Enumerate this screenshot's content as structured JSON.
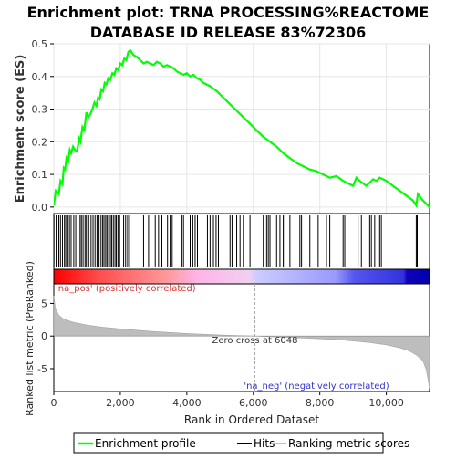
{
  "chart_data": {
    "type": "line",
    "title_line1": "Enrichment plot: TRNA PROCESSING%REACTOME",
    "title_line2": "DATABASE ID RELEASE 83%72306",
    "es_panel": {
      "ylabel": "Enrichment score (ES)",
      "ylim": [
        -0.02,
        0.5
      ],
      "yticks": [
        "0.0",
        "0.1",
        "0.2",
        "0.3",
        "0.4",
        "0.5"
      ],
      "grid": true,
      "series": [
        {
          "name": "Enrichment profile",
          "color": "#00ff00",
          "x": [
            0,
            60,
            150,
            200,
            260,
            300,
            340,
            380,
            430,
            480,
            520,
            580,
            640,
            700,
            760,
            800,
            860,
            920,
            980,
            1040,
            1100,
            1160,
            1220,
            1280,
            1330,
            1380,
            1430,
            1480,
            1530,
            1580,
            1640,
            1700,
            1760,
            1820,
            1880,
            1940,
            2000,
            2060,
            2120,
            2180,
            2240,
            2300,
            2400,
            2500,
            2600,
            2700,
            2800,
            2900,
            3000,
            3100,
            3200,
            3300,
            3400,
            3500,
            3600,
            3700,
            3800,
            3900,
            4000,
            4100,
            4200,
            4300,
            4400,
            4500,
            4700,
            4900,
            5100,
            5300,
            5500,
            5700,
            5900,
            6100,
            6300,
            6500,
            6700,
            6900,
            7100,
            7300,
            7500,
            7700,
            7900,
            8100,
            8300,
            8500,
            8700,
            8800,
            9000,
            9100,
            9200,
            9400,
            9500,
            9600,
            9700,
            9800,
            9900,
            10000,
            10200,
            10400,
            10600,
            10800,
            10900,
            10950,
            11100,
            11300
          ],
          "y": [
            0.005,
            0.05,
            0.04,
            0.08,
            0.07,
            0.12,
            0.115,
            0.15,
            0.14,
            0.175,
            0.165,
            0.185,
            0.175,
            0.17,
            0.21,
            0.2,
            0.245,
            0.235,
            0.29,
            0.275,
            0.285,
            0.3,
            0.32,
            0.31,
            0.335,
            0.33,
            0.36,
            0.355,
            0.38,
            0.375,
            0.395,
            0.39,
            0.41,
            0.405,
            0.425,
            0.42,
            0.44,
            0.435,
            0.455,
            0.45,
            0.475,
            0.48,
            0.465,
            0.46,
            0.45,
            0.44,
            0.445,
            0.44,
            0.435,
            0.445,
            0.44,
            0.43,
            0.435,
            0.43,
            0.425,
            0.415,
            0.41,
            0.405,
            0.41,
            0.4,
            0.405,
            0.395,
            0.39,
            0.38,
            0.37,
            0.355,
            0.335,
            0.315,
            0.295,
            0.275,
            0.255,
            0.235,
            0.215,
            0.2,
            0.185,
            0.165,
            0.15,
            0.135,
            0.125,
            0.115,
            0.11,
            0.1,
            0.09,
            0.095,
            0.08,
            0.075,
            0.065,
            0.09,
            0.08,
            0.065,
            0.075,
            0.085,
            0.08,
            0.09,
            0.085,
            0.08,
            0.065,
            0.05,
            0.035,
            0.02,
            0.005,
            0.04,
            0.02,
            0.0
          ]
        }
      ]
    },
    "ranked_panel": {
      "ylabel": "Ranked list metric (PreRanked)",
      "ylim": [
        -8.5,
        8
      ],
      "yticks": [
        "-5",
        "0",
        "5"
      ],
      "pos_label": "'na_pos' (positively correlated)",
      "neg_label": "'na_neg' (negatively correlated)",
      "zero_cross_label": "Zero cross at 6048",
      "zero_cross": 6048,
      "metric_profile": {
        "x": [
          0,
          50,
          150,
          300,
          600,
          1000,
          1500,
          2000,
          2500,
          3000,
          3500,
          4000,
          4500,
          5000,
          5500,
          6048,
          6500,
          7000,
          7500,
          8000,
          8500,
          9000,
          9500,
          10000,
          10400,
          10700,
          10900,
          11100,
          11200,
          11300
        ],
        "y": [
          6.2,
          4.2,
          3.2,
          2.6,
          2.1,
          1.7,
          1.35,
          1.1,
          0.9,
          0.7,
          0.55,
          0.4,
          0.28,
          0.17,
          0.08,
          0.0,
          -0.1,
          -0.2,
          -0.3,
          -0.42,
          -0.55,
          -0.75,
          -1.0,
          -1.35,
          -1.8,
          -2.3,
          -2.9,
          -3.8,
          -5.2,
          -8.0
        ]
      }
    },
    "xaxis": {
      "label": "Rank in Ordered Dataset",
      "xlim": [
        0,
        11300
      ],
      "ticks": [
        0,
        2000,
        4000,
        6000,
        8000,
        10000
      ],
      "tick_labels": [
        "0",
        "2,000",
        "4,000",
        "6,000",
        "8,000",
        "10,000"
      ]
    },
    "hits": [
      5,
      70,
      150,
      200,
      260,
      320,
      360,
      420,
      470,
      520,
      600,
      660,
      790,
      830,
      880,
      940,
      980,
      1050,
      1120,
      1180,
      1240,
      1300,
      1360,
      1420,
      1470,
      1510,
      1560,
      1600,
      1650,
      1700,
      1740,
      1790,
      1840,
      1880,
      1930,
      1980,
      2100,
      2160,
      2220,
      2280,
      2700,
      2850,
      3050,
      3150,
      3250,
      3420,
      3500,
      3560,
      3850,
      3900,
      4100,
      4180,
      4250,
      4320,
      4620,
      4700,
      4800,
      4880,
      4950,
      5300,
      5360,
      5500,
      5600,
      5700,
      5900,
      6300,
      6400,
      6450,
      6500,
      6700,
      6800,
      6900,
      6950,
      7100,
      7400,
      7450,
      7700,
      7950,
      8200,
      8300,
      8700,
      8750,
      9150,
      9250,
      9500,
      9550,
      9650,
      9750,
      9800,
      9850,
      10900,
      10930
    ],
    "color_bar": {
      "stops": [
        {
          "offset": 0,
          "color": "#ff0000"
        },
        {
          "offset": 0.12,
          "color": "#ff4d4d"
        },
        {
          "offset": 0.3,
          "color": "#ff9999"
        },
        {
          "offset": 0.38,
          "color": "#ffb3e6"
        },
        {
          "offset": 0.52,
          "color": "#f0d0f0"
        },
        {
          "offset": 0.54,
          "color": "#ccccff"
        },
        {
          "offset": 0.75,
          "color": "#9999ff"
        },
        {
          "offset": 0.8,
          "color": "#5555ee"
        },
        {
          "offset": 0.93,
          "color": "#3333dd"
        },
        {
          "offset": 0.94,
          "color": "#1100bb"
        },
        {
          "offset": 1,
          "color": "#0000aa"
        }
      ]
    },
    "legend": [
      {
        "label": "Enrichment profile",
        "color": "#00ff00"
      },
      {
        "label": "Hits",
        "color": "#000000"
      },
      {
        "label": "Ranking metric scores",
        "color": "#c0c0c0"
      }
    ]
  }
}
